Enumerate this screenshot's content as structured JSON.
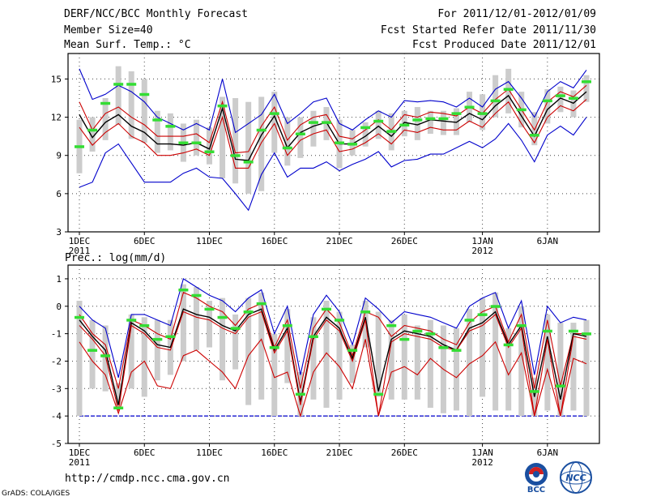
{
  "header": {
    "title": "DERF/NCC/BCC Monthly Forecast",
    "member_size": "Member Size=40",
    "variable": "Mean Surf. Temp.: °C",
    "period": "For 2011/12/01-2012/01/09",
    "fcst_started": "Fcst Started Refer Date 2011/11/30",
    "fcst_produced": "Fcst Produced Date 2011/12/01"
  },
  "footer": {
    "url": "http://cmdp.ncc.cma.gov.cn",
    "credit": "GrADS: COLA/IGES",
    "logo_left_text": "BCC",
    "logo_right_text": "NCC"
  },
  "colors": {
    "envelope": "#0000cc",
    "spread": "#cc0000",
    "mean": "#000000",
    "bars": "#cccccc",
    "markers": "#33dd33",
    "floor": "#0000cc",
    "grid": "#444444"
  },
  "chart_data": [
    {
      "type": "line",
      "panel": "temperature",
      "title": "Mean Surf. Temp.: °C",
      "days": 40,
      "ylim": [
        3,
        17
      ],
      "yticks": [
        3,
        6,
        9,
        12,
        15
      ],
      "xticks": [
        {
          "day": 1,
          "label": "1DEC",
          "sub": "2011"
        },
        {
          "day": 6,
          "label": "6DEC",
          "sub": ""
        },
        {
          "day": 11,
          "label": "11DEC",
          "sub": ""
        },
        {
          "day": 16,
          "label": "16DEC",
          "sub": ""
        },
        {
          "day": 21,
          "label": "21DEC",
          "sub": ""
        },
        {
          "day": 26,
          "label": "26DEC",
          "sub": ""
        },
        {
          "day": 32,
          "label": "1JAN",
          "sub": "2012"
        },
        {
          "day": 37,
          "label": "6JAN",
          "sub": ""
        }
      ],
      "series": [
        {
          "name": "max",
          "color": "#0000cc",
          "values": [
            15.8,
            13.4,
            13.8,
            14.5,
            14.0,
            13.2,
            12.0,
            11.5,
            11.0,
            11.5,
            11.0,
            15.0,
            10.8,
            11.5,
            12.2,
            13.8,
            11.5,
            12.3,
            13.2,
            13.5,
            11.5,
            11.0,
            11.8,
            12.5,
            12.0,
            13.3,
            13.2,
            13.3,
            13.2,
            12.8,
            13.5,
            12.8,
            14.2,
            14.8,
            13.5,
            12.0,
            14.0,
            14.8,
            14.3,
            15.7
          ]
        },
        {
          "name": "upper",
          "color": "#cc0000",
          "values": [
            13.2,
            11.0,
            12.3,
            12.8,
            12.0,
            11.4,
            10.5,
            10.5,
            10.5,
            10.7,
            10.0,
            13.2,
            9.2,
            9.3,
            11.3,
            12.8,
            10.2,
            11.4,
            12.0,
            12.2,
            10.5,
            10.3,
            11.0,
            11.8,
            11.0,
            12.2,
            12.0,
            12.4,
            12.3,
            12.1,
            12.8,
            12.3,
            13.4,
            14.2,
            12.6,
            11.0,
            13.2,
            14.0,
            13.6,
            14.5
          ]
        },
        {
          "name": "mean",
          "color": "#000000",
          "values": [
            12.2,
            10.4,
            11.6,
            12.2,
            11.3,
            10.8,
            9.9,
            9.9,
            9.8,
            10.0,
            9.5,
            12.7,
            8.7,
            8.6,
            10.6,
            12.1,
            9.6,
            10.8,
            11.3,
            11.6,
            9.9,
            9.9,
            10.5,
            11.3,
            10.5,
            11.6,
            11.4,
            11.8,
            11.7,
            11.6,
            12.3,
            11.8,
            12.9,
            13.7,
            12.1,
            10.5,
            12.6,
            13.5,
            13.1,
            14.0
          ]
        },
        {
          "name": "lower",
          "color": "#cc0000",
          "values": [
            11.2,
            9.8,
            10.8,
            11.5,
            10.5,
            10.0,
            9.0,
            9.0,
            9.2,
            9.5,
            9.0,
            12.0,
            8.0,
            8.0,
            10.0,
            11.5,
            9.0,
            10.2,
            10.7,
            11.0,
            9.3,
            9.5,
            10.0,
            10.7,
            9.9,
            11.0,
            10.8,
            11.2,
            11.0,
            11.0,
            11.7,
            11.2,
            12.3,
            13.2,
            11.5,
            10.0,
            12.0,
            12.9,
            12.5,
            13.4
          ]
        },
        {
          "name": "min",
          "color": "#0000cc",
          "values": [
            6.5,
            6.9,
            9.2,
            9.9,
            8.4,
            6.9,
            6.9,
            6.9,
            7.6,
            8.0,
            7.3,
            7.2,
            6.0,
            4.7,
            7.5,
            9.2,
            7.3,
            8.0,
            8.0,
            8.5,
            7.8,
            8.3,
            8.7,
            9.3,
            8.1,
            8.6,
            8.7,
            9.1,
            9.1,
            9.6,
            10.1,
            9.6,
            10.3,
            11.5,
            10.2,
            8.5,
            10.6,
            11.3,
            10.6,
            12.0
          ]
        }
      ],
      "bars_low": [
        7.6,
        9.3,
        10.2,
        11.4,
        10.3,
        10.0,
        9.2,
        9.4,
        8.5,
        9.0,
        8.3,
        7.2,
        6.8,
        6.0,
        6.2,
        9.2,
        8.2,
        8.8,
        9.7,
        10.2,
        8.0,
        9.0,
        9.7,
        10.3,
        9.4,
        10.5,
        10.2,
        10.7,
        10.6,
        10.6,
        11.6,
        11.0,
        12.0,
        12.3,
        11.2,
        9.8,
        11.5,
        12.4,
        12.0,
        13.2
      ],
      "bars_high": [
        11.8,
        12.0,
        13.5,
        16.0,
        15.6,
        15.0,
        12.5,
        12.3,
        11.5,
        11.8,
        11.2,
        13.6,
        13.5,
        13.2,
        13.6,
        14.0,
        12.0,
        12.0,
        12.5,
        12.8,
        11.8,
        11.0,
        11.6,
        12.5,
        12.3,
        12.5,
        12.8,
        12.5,
        12.5,
        12.7,
        14.0,
        13.8,
        15.3,
        15.8,
        14.0,
        12.4,
        14.2,
        14.4,
        14.1,
        15.3
      ],
      "markers": [
        9.7,
        11.0,
        13.1,
        14.6,
        14.6,
        13.8,
        11.8,
        11.3,
        10.0,
        10.0,
        9.3,
        12.9,
        9.0,
        8.5,
        11.0,
        12.3,
        9.6,
        10.7,
        11.6,
        11.6,
        10.0,
        9.9,
        11.2,
        11.7,
        10.9,
        11.4,
        11.8,
        11.9,
        11.9,
        12.3,
        12.8,
        12.3,
        13.3,
        14.2,
        12.6,
        10.6,
        13.3,
        13.7,
        13.5,
        14.8
      ]
    },
    {
      "type": "line",
      "panel": "precipitation",
      "title": "Prec.: log(mm/d)",
      "days": 40,
      "ylim": [
        -5,
        1.5
      ],
      "yticks": [
        -5,
        -4,
        -3,
        -2,
        -1,
        0,
        1
      ],
      "floor": -4,
      "xticks": [
        {
          "day": 1,
          "label": "1DEC",
          "sub": "2011"
        },
        {
          "day": 6,
          "label": "6DEC",
          "sub": ""
        },
        {
          "day": 11,
          "label": "11DEC",
          "sub": ""
        },
        {
          "day": 16,
          "label": "16DEC",
          "sub": ""
        },
        {
          "day": 21,
          "label": "21DEC",
          "sub": ""
        },
        {
          "day": 26,
          "label": "26DEC",
          "sub": ""
        },
        {
          "day": 32,
          "label": "1JAN",
          "sub": "2012"
        },
        {
          "day": 37,
          "label": "6JAN",
          "sub": ""
        }
      ],
      "series": [
        {
          "name": "max",
          "color": "#0000cc",
          "values": [
            0.0,
            -0.5,
            -0.8,
            -2.6,
            -0.3,
            -0.3,
            -0.5,
            -0.7,
            1.0,
            0.7,
            0.4,
            0.2,
            -0.2,
            0.3,
            0.6,
            -1.0,
            0.0,
            -2.5,
            -0.3,
            0.4,
            -0.2,
            -1.4,
            0.3,
            -0.1,
            -0.6,
            -0.2,
            -0.3,
            -0.4,
            -0.6,
            -0.8,
            0.0,
            0.3,
            0.5,
            -0.8,
            0.2,
            -2.5,
            0.0,
            -0.6,
            -0.4,
            -0.5
          ]
        },
        {
          "name": "upper",
          "color": "#cc0000",
          "values": [
            -0.3,
            -1.0,
            -1.4,
            -3.0,
            -0.5,
            -0.7,
            -1.0,
            -1.2,
            0.5,
            0.3,
            0.0,
            -0.2,
            -0.7,
            -0.1,
            0.1,
            -1.5,
            -0.5,
            -3.0,
            -0.8,
            -0.1,
            -0.6,
            -1.8,
            -0.2,
            -0.4,
            -1.1,
            -0.7,
            -0.8,
            -0.9,
            -1.2,
            -1.4,
            -0.6,
            -0.2,
            0.0,
            -1.3,
            -0.3,
            -3.0,
            -0.5,
            -2.9,
            -1.0,
            -1.0
          ]
        },
        {
          "name": "mean",
          "color": "#000000",
          "values": [
            -0.5,
            -1.1,
            -1.6,
            -3.6,
            -0.6,
            -0.9,
            -1.4,
            -1.5,
            -0.1,
            -0.3,
            -0.4,
            -0.7,
            -0.9,
            -0.3,
            -0.1,
            -1.6,
            -0.8,
            -3.5,
            -1.1,
            -0.4,
            -0.8,
            -1.9,
            -0.4,
            -3.1,
            -1.2,
            -0.9,
            -1.0,
            -1.1,
            -1.4,
            -1.6,
            -0.8,
            -0.6,
            -0.2,
            -1.4,
            -0.7,
            -3.3,
            -1.1,
            -3.4,
            -1.0,
            -1.1
          ]
        },
        {
          "name": "lower",
          "color": "#cc0000",
          "values": [
            -0.7,
            -1.2,
            -1.8,
            -3.8,
            -0.7,
            -1.0,
            -1.5,
            -1.6,
            -0.2,
            -0.4,
            -0.5,
            -0.8,
            -1.0,
            -0.4,
            -0.2,
            -1.7,
            -0.9,
            -3.6,
            -1.2,
            -0.5,
            -0.9,
            -2.0,
            -0.5,
            -4.0,
            -1.3,
            -1.0,
            -1.1,
            -1.2,
            -1.5,
            -1.6,
            -0.9,
            -0.7,
            -0.3,
            -1.5,
            -0.8,
            -4.0,
            -1.2,
            -4.0,
            -1.1,
            -1.2
          ]
        },
        {
          "name": "min",
          "color": "#cc0000",
          "values": [
            -1.3,
            -2.0,
            -2.5,
            -3.9,
            -2.4,
            -2.0,
            -2.9,
            -3.0,
            -1.8,
            -1.6,
            -2.0,
            -2.4,
            -3.0,
            -1.8,
            -1.2,
            -2.6,
            -2.4,
            -4.0,
            -2.4,
            -1.7,
            -2.2,
            -3.0,
            -1.2,
            -4.0,
            -2.4,
            -2.2,
            -2.5,
            -1.9,
            -2.3,
            -2.6,
            -2.1,
            -1.8,
            -1.3,
            -2.5,
            -1.7,
            -4.0,
            -2.3,
            -4.0,
            -1.9,
            -2.1
          ]
        }
      ],
      "bars_low": [
        -4.0,
        -3.0,
        -3.1,
        -3.6,
        -3.0,
        -3.3,
        -2.7,
        -2.5,
        -2.0,
        -1.6,
        -1.5,
        -2.7,
        -2.3,
        -3.6,
        -3.4,
        -4.0,
        -2.8,
        -4.0,
        -3.4,
        -3.7,
        -3.4,
        -2.8,
        -1.5,
        -3.3,
        -3.4,
        -3.4,
        -3.4,
        -3.7,
        -3.9,
        -3.8,
        -4.0,
        -3.3,
        -3.8,
        -3.8,
        -4.0,
        -4.0,
        -3.8,
        -4.0,
        -3.8,
        -4.0
      ],
      "bars_high": [
        0.2,
        -0.5,
        -0.7,
        -2.8,
        -0.3,
        -0.4,
        -0.5,
        -0.5,
        0.8,
        0.7,
        0.2,
        0.3,
        -0.3,
        0.3,
        0.5,
        -1.0,
        -0.1,
        -2.4,
        -0.4,
        0.2,
        -0.2,
        -1.4,
        0.2,
        -0.2,
        -0.5,
        -0.3,
        -0.7,
        -0.5,
        -0.7,
        -0.8,
        -0.1,
        0.3,
        0.5,
        -0.8,
        0.0,
        -2.6,
        -0.3,
        -0.6,
        -0.6,
        -0.5
      ],
      "markers": [
        -0.4,
        -1.6,
        -1.8,
        -3.7,
        -0.5,
        -0.7,
        -1.2,
        -1.1,
        0.6,
        0.4,
        -0.1,
        -0.4,
        -0.8,
        -0.2,
        0.1,
        -1.5,
        -0.7,
        -3.2,
        -1.1,
        -0.1,
        -0.5,
        -1.6,
        -0.2,
        -3.2,
        -0.7,
        -1.2,
        -0.9,
        -1.0,
        -1.5,
        -1.6,
        -0.5,
        -0.3,
        0.0,
        -1.4,
        -0.7,
        -3.1,
        -0.9,
        -2.9,
        -0.9,
        -1.0
      ]
    }
  ]
}
